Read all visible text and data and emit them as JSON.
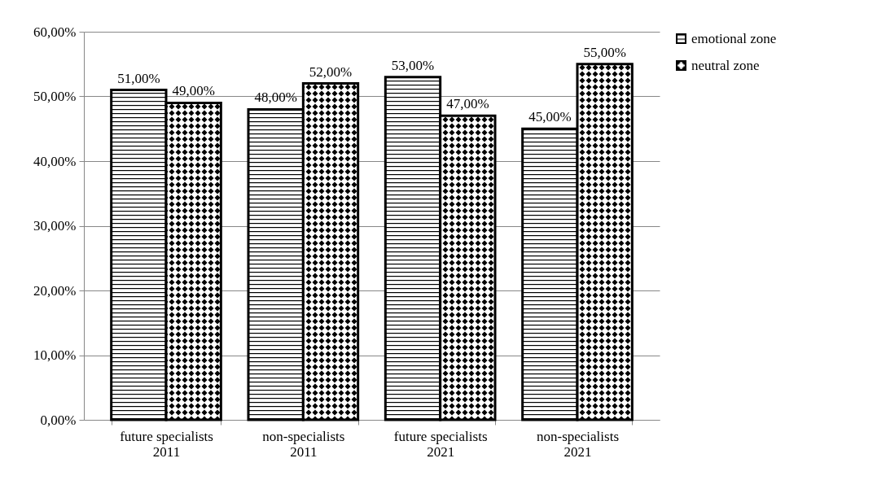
{
  "chart_data": {
    "type": "bar",
    "categories": [
      "future specialists 2011",
      "non-specialists 2011",
      "future specialists 2021",
      "non-specialists 2021"
    ],
    "series": [
      {
        "name": "emotional zone",
        "values": [
          51,
          48,
          53,
          45
        ],
        "value_labels": [
          "51,00%",
          "48,00%",
          "53,00%",
          "45,00%"
        ]
      },
      {
        "name": "neutral zone",
        "values": [
          49,
          52,
          47,
          55
        ],
        "value_labels": [
          "49,00%",
          "52,00%",
          "47,00%",
          "55,00%"
        ]
      }
    ],
    "ylim": [
      0,
      60
    ],
    "yticks": [
      {
        "value": 0,
        "label": "0,00%"
      },
      {
        "value": 10,
        "label": "10,00%"
      },
      {
        "value": 20,
        "label": "20,00%"
      },
      {
        "value": 30,
        "label": "30,00%"
      },
      {
        "value": 40,
        "label": "40,00%"
      },
      {
        "value": 50,
        "label": "50,00%"
      },
      {
        "value": 60,
        "label": "60,00%"
      }
    ],
    "grid": "y",
    "legend": "right"
  }
}
